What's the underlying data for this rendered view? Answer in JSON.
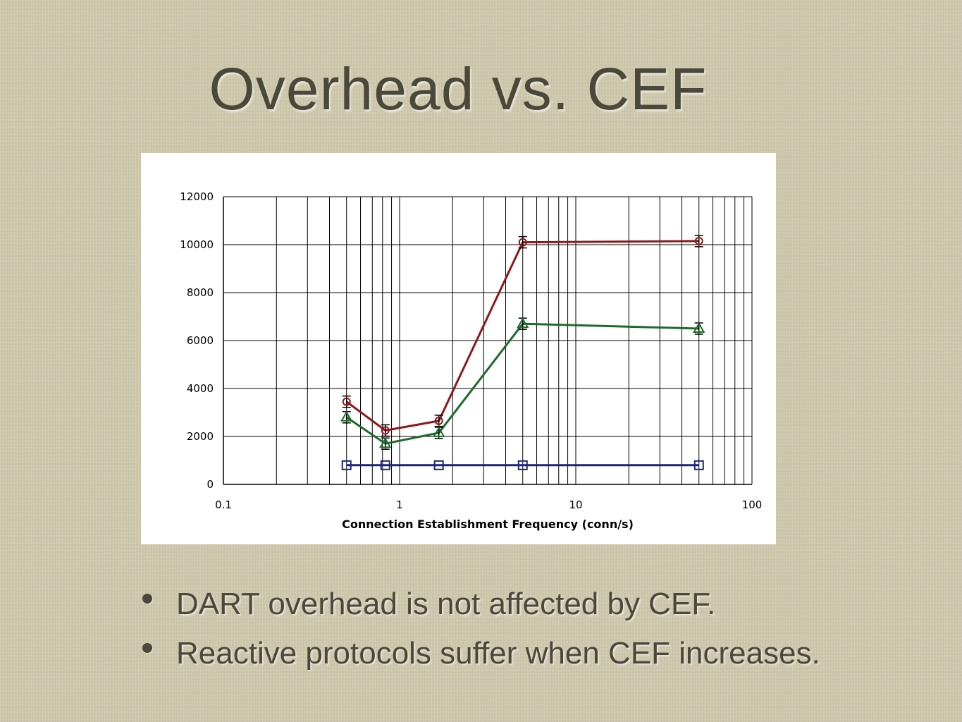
{
  "title": "Overhead vs. CEF",
  "bullets": [
    "DART overhead is not affected by CEF.",
    "Reactive protocols suffer when CEF increases."
  ],
  "chart_data": {
    "type": "line",
    "xlabel": "Connection Establishment Frequency (conn/s)",
    "ylabel": "",
    "xscale": "log",
    "xlim": [
      0.1,
      100
    ],
    "ylim": [
      0,
      12000
    ],
    "x_ticks": [
      "0.1",
      "1",
      "10",
      "100"
    ],
    "y_ticks": [
      "0",
      "2000",
      "4000",
      "6000",
      "8000",
      "10000",
      "12000"
    ],
    "grid": true,
    "legend": "none",
    "series": [
      {
        "color": "#8b1a1a",
        "marker": "circle",
        "x": [
          0.5,
          0.83,
          1.67,
          5,
          50
        ],
        "y": [
          3450,
          2250,
          2650,
          10100,
          10150
        ]
      },
      {
        "color": "#1e6b2a",
        "marker": "triangle",
        "x": [
          0.5,
          0.83,
          1.67,
          5,
          50
        ],
        "y": [
          2800,
          1700,
          2150,
          6700,
          6500
        ]
      },
      {
        "color": "#1a237e",
        "marker": "square",
        "x": [
          0.5,
          0.83,
          1.67,
          5,
          50
        ],
        "y": [
          800,
          800,
          800,
          800,
          800
        ]
      }
    ]
  }
}
